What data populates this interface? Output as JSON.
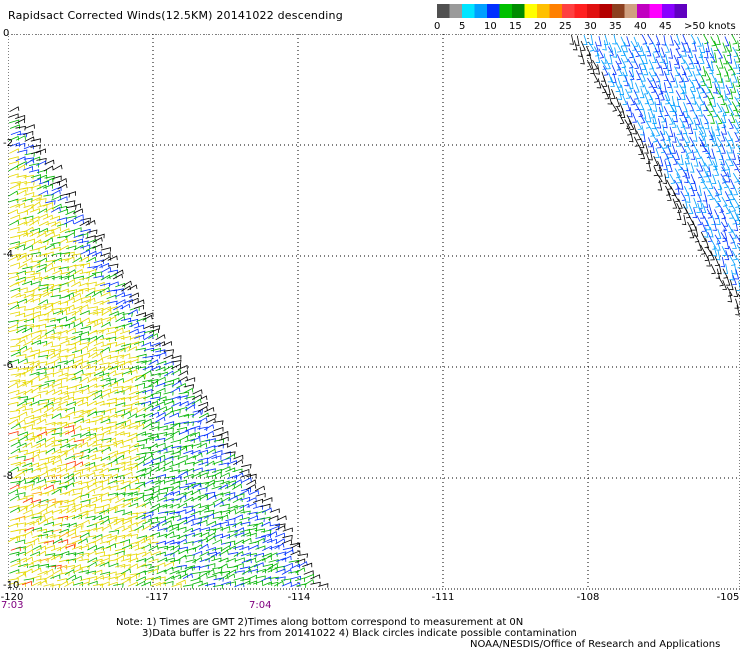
{
  "title": "Rapidsact Corrected Winds(12.5KM) 20141022 descending",
  "colorbar": {
    "colors": [
      "#505050",
      "#9a9a9a",
      "#00e5ff",
      "#00a0ff",
      "#0030ff",
      "#00c000",
      "#008c00",
      "#ffff00",
      "#ffc000",
      "#ff8000",
      "#ff4040",
      "#ff2020",
      "#e01010",
      "#b40000",
      "#8c4020",
      "#d0a080",
      "#c000c0",
      "#ff00ff",
      "#8800ff",
      "#6000c0"
    ],
    "labels": [
      "0",
      "5",
      "10",
      "15",
      "20",
      "25",
      "30",
      "35",
      "40",
      "45",
      ">50 knots"
    ]
  },
  "lat_labels": [
    "0",
    "-2",
    "-4",
    "-6",
    "-8",
    "-10"
  ],
  "lon_labels": [
    "-120",
    "-117",
    "-114",
    "-111",
    "-108",
    "-105"
  ],
  "time_labels": [
    "7:03",
    "7:04"
  ],
  "notes": {
    "line1": "Note: 1) Times are GMT 2)Times along bottom correspond to measurement at 0N",
    "line2": "3)Data buffer is 22 hrs from 20141022 4) Black circles indicate possible contamination",
    "line3": "NOAA/NESDIS/Office of Research and Applications"
  },
  "swath_colors": {
    "black": "#000000",
    "blue": "#0030ff",
    "lightblue": "#00a0ff",
    "green": "#00b400",
    "yellow": "#e6d800",
    "orange": "#ffa000",
    "red": "#ff3000"
  }
}
